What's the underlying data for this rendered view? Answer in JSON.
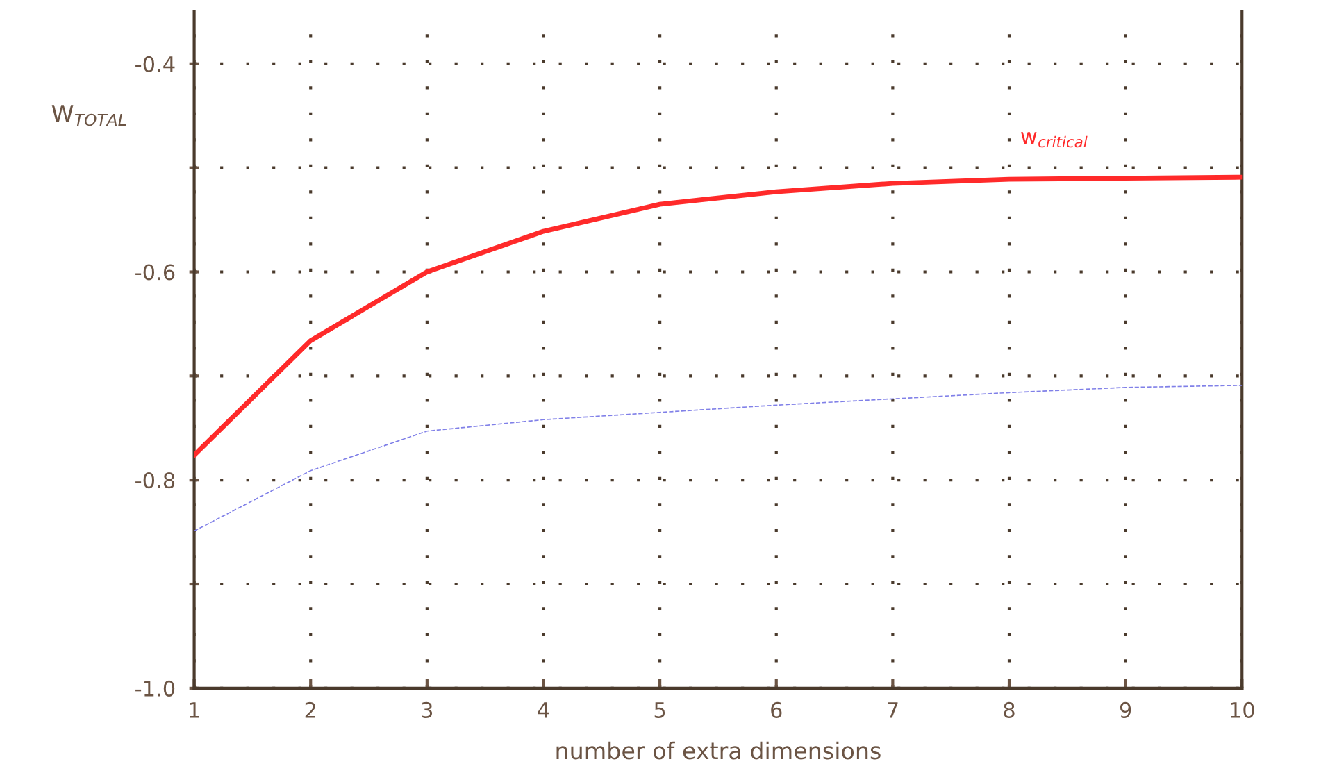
{
  "chart_data": {
    "type": "line",
    "xlabel": "number of extra dimensions",
    "ylabel": "W$_{TOTAL}$",
    "x": [
      1,
      2,
      3,
      4,
      5,
      6,
      7,
      8,
      9,
      10
    ],
    "series": [
      {
        "name": "w$_{critical}$",
        "color": "#ff2a2a",
        "values": [
          -0.776,
          -0.666,
          -0.6,
          -0.561,
          -0.535,
          -0.523,
          -0.515,
          -0.511,
          -0.51,
          -0.509
        ],
        "line_style": "solid"
      },
      {
        "color": "#8080e8",
        "values": [
          -0.849,
          -0.791,
          -0.753,
          -0.742,
          -0.735,
          -0.728,
          -0.722,
          -0.716,
          -0.711,
          -0.709
        ],
        "line_style": "dashed"
      }
    ],
    "xlim": [
      1,
      10
    ],
    "ylim": [
      -1.0,
      -0.35
    ],
    "xticks": [
      1,
      2,
      3,
      4,
      5,
      6,
      7,
      8,
      9,
      10
    ],
    "yticks": [
      {
        "value": -1.0,
        "label": "-1.0"
      },
      {
        "value": -0.9,
        "label": null
      },
      {
        "value": -0.8,
        "label": "-0.8"
      },
      {
        "value": -0.7,
        "label": null
      },
      {
        "value": -0.6,
        "label": "-0.6"
      },
      {
        "value": -0.5,
        "label": null
      },
      {
        "value": -0.4,
        "label": "-0.4"
      }
    ],
    "grid": true,
    "legend": false,
    "marker": "none"
  }
}
